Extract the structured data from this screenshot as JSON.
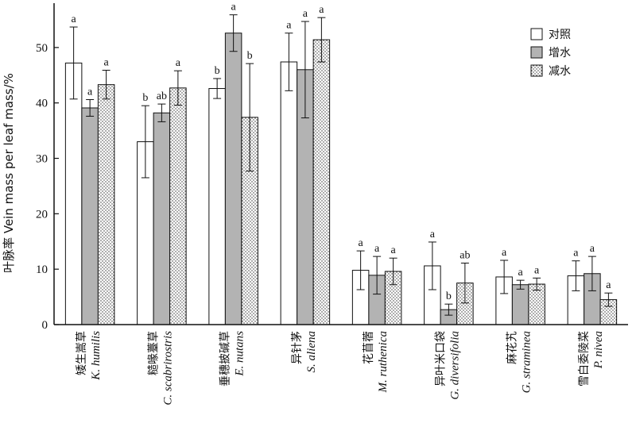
{
  "chart_data": {
    "type": "bar",
    "ylabel": "叶脉率 Vein mass per leaf mass/%",
    "ylim": [
      0,
      58
    ],
    "yticks": [
      0,
      10,
      20,
      30,
      40,
      50
    ],
    "grid": false,
    "legend_position": "top-right",
    "categories": [
      {
        "cn": "矮生嵩草",
        "latin": "K. humilis"
      },
      {
        "cn": "糙喙薹草",
        "latin": "C. scabrirostris"
      },
      {
        "cn": "垂穗披碱草",
        "latin": "E. nutans"
      },
      {
        "cn": "异针茅",
        "latin": "S. aliena"
      },
      {
        "cn": "花苜蓿",
        "latin": "M. ruthenica"
      },
      {
        "cn": "异叶米口袋",
        "latin": "G. diversifolia"
      },
      {
        "cn": "麻花艽",
        "latin": "G. straminea"
      },
      {
        "cn": "雪白委陵菜",
        "latin": "P. nivea"
      }
    ],
    "series": [
      {
        "name": "对照",
        "fill": "#ffffff",
        "pattern": "none",
        "values": [
          47.2,
          33.0,
          42.6,
          47.4,
          9.8,
          10.6,
          8.6,
          8.8
        ],
        "errors": [
          6.5,
          6.5,
          1.8,
          5.2,
          3.5,
          4.3,
          3.0,
          2.7
        ],
        "significance": [
          "a",
          "b",
          "b",
          "a",
          "a",
          "a",
          "a",
          "a"
        ]
      },
      {
        "name": "增水",
        "fill": "#b3b3b3",
        "pattern": "none",
        "values": [
          39.1,
          38.2,
          52.6,
          46.0,
          8.9,
          2.7,
          7.2,
          9.2
        ],
        "errors": [
          1.5,
          1.6,
          3.3,
          8.7,
          3.4,
          1.0,
          0.8,
          3.1
        ],
        "significance": [
          "a",
          "ab",
          "a",
          "a",
          "a",
          "b",
          "a",
          "a"
        ]
      },
      {
        "name": "减水",
        "fill": "#ffffff",
        "pattern": "dots",
        "values": [
          43.3,
          42.7,
          37.4,
          51.4,
          9.6,
          7.5,
          7.3,
          4.5
        ],
        "errors": [
          2.6,
          3.1,
          9.7,
          4.0,
          2.4,
          3.6,
          1.1,
          1.2
        ],
        "significance": [
          "a",
          "a",
          "b",
          "a",
          "a",
          "ab",
          "a",
          "a"
        ]
      }
    ]
  }
}
